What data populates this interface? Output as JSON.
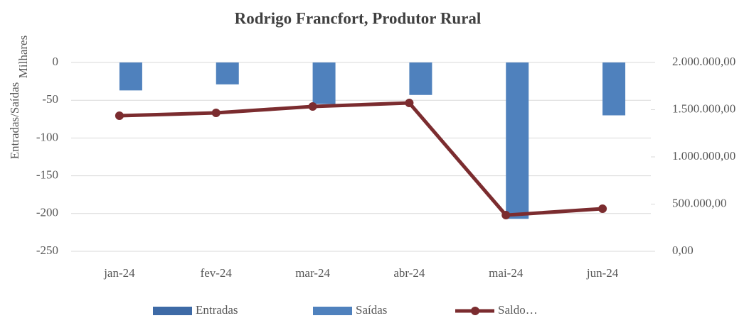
{
  "chart_data": {
    "type": "bar_line",
    "title": "Rodrigo Francfort, Produtor Rural",
    "y_label": "Entradas/Saídas",
    "y_unit": "Milhares",
    "categories": [
      "jan-24",
      "fev-24",
      "mar-24",
      "abr-24",
      "mai-24",
      "jun-24"
    ],
    "series": [
      {
        "name": "Entradas",
        "type": "bar",
        "color": "#3e6aa6",
        "values": [
          0,
          0,
          0,
          0,
          0,
          0
        ]
      },
      {
        "name": "Saídas",
        "type": "bar",
        "color": "#4f81bd",
        "values": [
          -37,
          -29,
          -55,
          -43,
          -207,
          -70
        ]
      },
      {
        "name": "Saldo…",
        "type": "line",
        "axis": "y2",
        "color": "#7b2c2f",
        "values": [
          1436000,
          1466000,
          1534000,
          1571000,
          383000,
          451000
        ]
      }
    ],
    "ylim": [
      -250,
      0
    ],
    "yticks": [
      0,
      -50,
      -100,
      -150,
      -200,
      -250
    ],
    "y2lim": [
      0,
      2000000
    ],
    "y2ticks": [
      {
        "value": 2000000,
        "label": "2.000.000,00"
      },
      {
        "value": 1500000,
        "label": "1.500.000,00"
      },
      {
        "value": 1000000,
        "label": "1.000.000,00"
      },
      {
        "value": 500000,
        "label": "500.000,00"
      },
      {
        "value": 0,
        "label": "0,00"
      }
    ],
    "grid": true,
    "legend": "bottom"
  }
}
